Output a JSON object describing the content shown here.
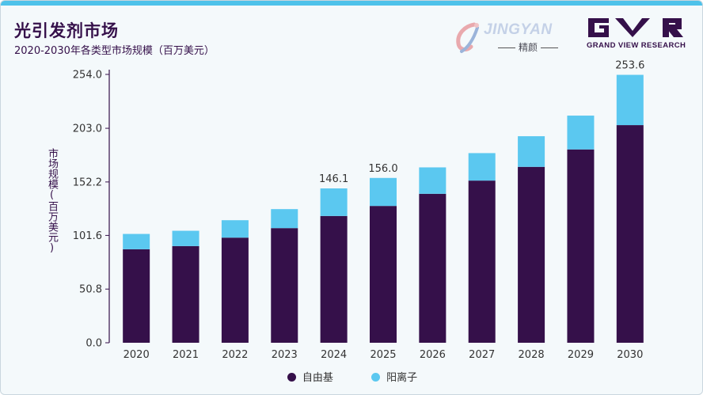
{
  "header": {
    "title": "光引发剂市场",
    "subtitle": "2020-2030年各类型市场规模（百万美元）"
  },
  "logos": {
    "jingyan_word": "JINGYAN",
    "jingyan_sub": "精颜",
    "gvr_text": "GRAND VIEW RESEARCH"
  },
  "colors": {
    "series1": "#35104a",
    "series2": "#5bc8f0",
    "axis": "#35104a",
    "text": "#333333"
  },
  "chart_data": {
    "type": "bar",
    "stacked": true,
    "ylabel": "市场规模(百万美元)",
    "ylim": [
      0,
      254.0
    ],
    "yticks": [
      "0.0",
      "50.8",
      "101.6",
      "152.2",
      "203.0",
      "254.0"
    ],
    "ytick_values": [
      0,
      50.8,
      101.6,
      152.2,
      203.0,
      254.0
    ],
    "categories": [
      "2020",
      "2021",
      "2022",
      "2023",
      "2024",
      "2025",
      "2026",
      "2027",
      "2028",
      "2029",
      "2030"
    ],
    "series": [
      {
        "name": "自由基",
        "values": [
          88.5,
          91.5,
          99.5,
          108.5,
          120.0,
          129.5,
          141.0,
          153.5,
          166.5,
          183.0,
          206.0
        ]
      },
      {
        "name": "阳离子",
        "values": [
          14.5,
          14.5,
          16.5,
          18.0,
          26.1,
          26.5,
          25.0,
          26.0,
          29.0,
          32.0,
          47.6
        ]
      }
    ],
    "data_labels": [
      {
        "category": "2024",
        "text": "146.1"
      },
      {
        "category": "2025",
        "text": "156.0"
      },
      {
        "category": "2030",
        "text": "253.6"
      }
    ],
    "grid": false,
    "legend": "bottom"
  }
}
